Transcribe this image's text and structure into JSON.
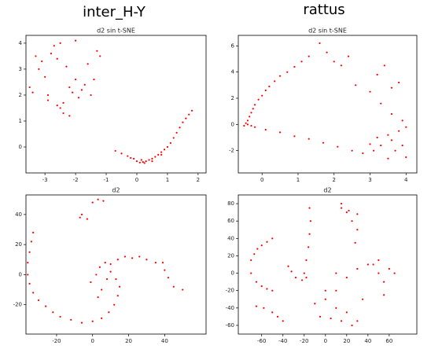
{
  "headings": [
    "inter_H-Y",
    "rattus"
  ],
  "chart_data": [
    {
      "type": "scatter",
      "title": "d2 sin t-SNE",
      "color": "red",
      "xlim": [
        -3.62,
        2.26
      ],
      "ylim": [
        -1.0,
        4.3
      ],
      "xticks": [
        -3,
        -2,
        -1,
        0,
        1,
        2
      ],
      "yticks": [
        0,
        1,
        2,
        3,
        4
      ],
      "x": [
        -3.5,
        -3.4,
        -3.3,
        -3.2,
        -3.1,
        -3.0,
        -2.9,
        -2.9,
        -2.8,
        -2.7,
        -2.6,
        -2.6,
        -2.5,
        -2.5,
        -2.4,
        -2.3,
        -2.2,
        -2.1,
        -2.0,
        -2.0,
        -1.9,
        -1.8,
        -1.7,
        -1.6,
        -1.5,
        -1.4,
        -1.3,
        -1.2,
        -2.4,
        -2.2,
        -0.7,
        -0.5,
        -0.3,
        -0.1,
        0.0,
        0.1,
        0.2,
        0.3,
        0.4,
        0.5,
        0.6,
        0.7,
        0.8,
        0.9,
        1.0,
        1.1,
        1.2,
        1.3,
        1.4,
        1.5,
        1.6,
        1.7,
        1.8,
        0.15,
        0.25,
        -0.2,
        0.5,
        0.8
      ],
      "values": [
        2.3,
        2.1,
        3.5,
        3.0,
        3.3,
        2.7,
        2.0,
        1.8,
        3.6,
        3.9,
        3.4,
        1.6,
        1.5,
        4.0,
        1.3,
        3.1,
        2.3,
        2.1,
        2.6,
        4.1,
        1.9,
        2.2,
        2.4,
        3.2,
        2.0,
        2.6,
        3.7,
        3.5,
        1.7,
        1.2,
        -0.15,
        -0.25,
        -0.35,
        -0.45,
        -0.55,
        -0.6,
        -0.58,
        -0.55,
        -0.5,
        -0.45,
        -0.38,
        -0.3,
        -0.2,
        -0.1,
        0.0,
        0.15,
        0.35,
        0.55,
        0.75,
        0.95,
        1.1,
        1.25,
        1.4,
        -0.5,
        -0.62,
        -0.42,
        -0.55,
        -0.3
      ]
    },
    {
      "type": "scatter",
      "title": "d2 sin t-SNE",
      "color": "red",
      "xlim": [
        -0.66,
        4.3
      ],
      "ylim": [
        -3.7,
        6.8
      ],
      "xticks": [
        0,
        1,
        2,
        3,
        4
      ],
      "yticks": [
        -2,
        0,
        2,
        4,
        6
      ],
      "x": [
        -0.5,
        -0.45,
        -0.4,
        -0.35,
        -0.3,
        -0.25,
        -0.2,
        -0.1,
        0.0,
        0.1,
        0.2,
        0.35,
        0.5,
        0.7,
        0.9,
        1.1,
        1.3,
        -0.4,
        -0.3,
        -0.2,
        0.1,
        0.5,
        0.9,
        1.3,
        1.7,
        2.1,
        2.5,
        2.8,
        1.6,
        1.8,
        2.0,
        2.2,
        2.6,
        3.0,
        3.2,
        3.4,
        3.6,
        3.8,
        2.4,
        3.3,
        3.6,
        3.0,
        3.1,
        3.3,
        3.5,
        3.6,
        3.7,
        3.8,
        3.9,
        4.0,
        4.0,
        3.9,
        3.5,
        3.2
      ],
      "values": [
        -0.1,
        0.1,
        0.3,
        0.6,
        0.9,
        1.2,
        1.5,
        1.9,
        2.2,
        2.6,
        2.9,
        3.3,
        3.7,
        4.0,
        4.4,
        4.8,
        5.2,
        0.0,
        -0.1,
        -0.2,
        -0.4,
        -0.6,
        -0.9,
        -1.1,
        -1.4,
        -1.7,
        -2.0,
        -2.2,
        6.2,
        5.5,
        4.8,
        4.5,
        3.0,
        2.5,
        3.8,
        4.5,
        2.8,
        3.2,
        5.2,
        1.6,
        0.8,
        -1.5,
        -2.0,
        -1.6,
        -0.8,
        -1.2,
        -2.0,
        -0.5,
        -1.6,
        -2.5,
        -0.2,
        0.3,
        -2.6,
        -1.0
      ]
    },
    {
      "type": "scatter",
      "title": "d2",
      "color": "red",
      "xlim": [
        -37,
        63
      ],
      "ylim": [
        -39.5,
        53
      ],
      "xticks": [
        -20,
        0,
        20,
        40
      ],
      "yticks": [
        -20,
        0,
        20,
        40
      ],
      "x": [
        -33,
        -34,
        -35,
        -36,
        -36,
        -35,
        -33,
        -30,
        -26,
        -22,
        -18,
        -12,
        -6,
        0,
        5,
        9,
        12,
        14,
        15,
        13,
        -1,
        2,
        4,
        7,
        10,
        14,
        18,
        22,
        26,
        30,
        35,
        39,
        40,
        42,
        45,
        50,
        8,
        5,
        3,
        10,
        -7,
        -6,
        0,
        3,
        6,
        -3
      ],
      "values": [
        28,
        22,
        15,
        8,
        0,
        -6,
        -12,
        -17,
        -21,
        -25,
        -28,
        -30,
        -32,
        -31,
        -29,
        -25,
        -20,
        -14,
        -8,
        -3,
        -5,
        0,
        5,
        8,
        7,
        10,
        12,
        11,
        12,
        10,
        8,
        8,
        3,
        -2,
        -8,
        -10,
        -3,
        -10,
        -15,
        2,
        38,
        40,
        48,
        50,
        49,
        37
      ]
    },
    {
      "type": "scatter",
      "title": "d2",
      "color": "red",
      "xlim": [
        -82,
        86
      ],
      "ylim": [
        -70,
        90
      ],
      "xticks": [
        -60,
        -40,
        -20,
        0,
        20,
        40,
        60
      ],
      "yticks": [
        -60,
        -40,
        -20,
        0,
        20,
        40,
        60,
        80
      ],
      "x": [
        -70,
        -67,
        -64,
        -60,
        -55,
        -50,
        -70,
        -65,
        -60,
        -55,
        -50,
        -65,
        -58,
        -50,
        -45,
        -40,
        -35,
        -32,
        -28,
        -15,
        -14,
        -15,
        -16,
        -18,
        -20,
        -22,
        -18,
        15,
        20,
        25,
        30,
        28,
        15,
        22,
        30,
        -10,
        0,
        10,
        20,
        30,
        40,
        50,
        -5,
        5,
        15,
        25,
        30,
        45,
        50,
        55,
        55,
        60,
        65,
        0,
        10,
        20,
        35,
        10
      ],
      "values": [
        15,
        22,
        28,
        32,
        36,
        40,
        0,
        -10,
        -15,
        -18,
        -20,
        -38,
        -40,
        -45,
        -50,
        -55,
        8,
        2,
        -5,
        75,
        60,
        45,
        30,
        15,
        0,
        -8,
        -5,
        80,
        70,
        60,
        50,
        35,
        75,
        72,
        68,
        -35,
        -30,
        -20,
        -5,
        5,
        10,
        15,
        -50,
        -52,
        -55,
        -60,
        -55,
        10,
        0,
        -10,
        -25,
        5,
        0,
        -20,
        -40,
        -45,
        -30,
        0
      ]
    }
  ]
}
